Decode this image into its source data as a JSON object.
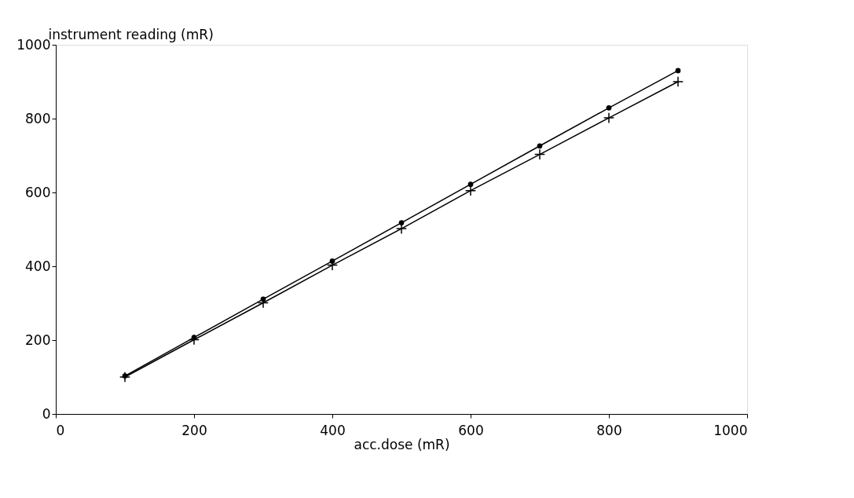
{
  "chart_data": {
    "type": "line",
    "xlabel": "acc.dose (mR)",
    "ylabel": "instrument reading (mR)",
    "x": [
      100,
      200,
      300,
      400,
      500,
      600,
      700,
      800,
      900
    ],
    "series": [
      {
        "color": "#000000",
        "marker": "circle",
        "values": [
          103,
          207,
          311,
          414,
          518,
          622,
          726,
          829,
          930
        ]
      },
      {
        "color": "#000000",
        "marker": "cross",
        "values": [
          100,
          201,
          301,
          403,
          502,
          605,
          703,
          802,
          900
        ]
      }
    ],
    "xlim": [
      0,
      1000
    ],
    "ylim": [
      0,
      1000
    ],
    "xticks": [
      0,
      200,
      400,
      600,
      800,
      1000
    ],
    "yticks": [
      0,
      200,
      400,
      600,
      800,
      1000
    ],
    "grid": false,
    "line_style": "solid"
  }
}
